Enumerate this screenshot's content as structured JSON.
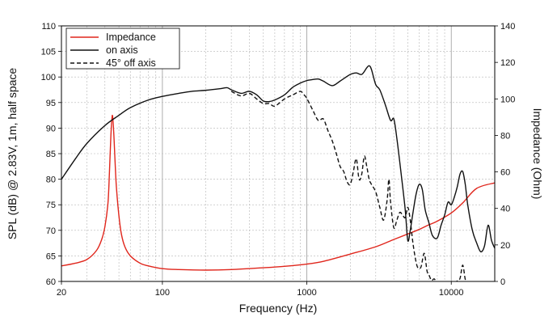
{
  "chart_data": {
    "type": "line",
    "xlabel": "Frequency (Hz)",
    "ylabel_left": "SPL (dB) @ 2.83V, 1m, half space",
    "ylabel_right": "Impedance (Ohm)",
    "x_scale": "log",
    "xlim": [
      20,
      20000
    ],
    "ylim_left": [
      60,
      110
    ],
    "ylim_right": [
      0,
      140
    ],
    "x_ticks": [
      {
        "value": 20,
        "label": "20"
      },
      {
        "value": 100,
        "label": "100"
      },
      {
        "value": 1000,
        "label": "1000"
      },
      {
        "value": 10000,
        "label": "10000"
      }
    ],
    "y_ticks_left": [
      "60",
      "65",
      "70",
      "75",
      "80",
      "85",
      "90",
      "95",
      "100",
      "105",
      "110"
    ],
    "y_ticks_right": [
      "0",
      "20",
      "40",
      "60",
      "80",
      "100",
      "120",
      "140"
    ],
    "grid": true,
    "legend_position": "top-left",
    "series": [
      {
        "name": "Impedance",
        "axis": "right",
        "color": "#e0261c",
        "style": "solid",
        "x": [
          20,
          25,
          30,
          35,
          38,
          40,
          42,
          43,
          44,
          45,
          46,
          47,
          48,
          50,
          52,
          55,
          60,
          70,
          80,
          100,
          130,
          200,
          300,
          500,
          700,
          1000,
          1300,
          2000,
          3000,
          4000,
          5000,
          6000,
          7000,
          8000,
          10000,
          12000,
          15000,
          20000
        ],
        "y": [
          8.5,
          10,
          12,
          17,
          23,
          30,
          43,
          60,
          80,
          91,
          82,
          66,
          52,
          36,
          26,
          19,
          14,
          10,
          8.5,
          7,
          6.5,
          6.2,
          6.5,
          7.5,
          8.3,
          9.5,
          11,
          15,
          19,
          23,
          26,
          28.5,
          31,
          33,
          37.5,
          43,
          51,
          54
        ]
      },
      {
        "name": "on axis",
        "axis": "left",
        "color": "#111111",
        "style": "solid",
        "x": [
          20,
          25,
          30,
          40,
          50,
          60,
          80,
          100,
          130,
          160,
          200,
          250,
          280,
          300,
          350,
          400,
          450,
          500,
          550,
          600,
          700,
          800,
          900,
          1000,
          1100,
          1200,
          1300,
          1500,
          1700,
          2000,
          2200,
          2400,
          2600,
          2700,
          2800,
          3000,
          3200,
          3500,
          3800,
          4000,
          4200,
          4500,
          4800,
          5000,
          5200,
          5400,
          5700,
          6000,
          6300,
          6600,
          7000,
          7400,
          8000,
          8500,
          9000,
          9500,
          10000,
          10500,
          11000,
          11500,
          12000,
          12500,
          13000,
          14000,
          15000,
          16000,
          17000,
          18000,
          19000,
          20000
        ],
        "y": [
          80,
          84,
          87,
          90.5,
          92.5,
          94,
          95.5,
          96.2,
          96.8,
          97.2,
          97.4,
          97.7,
          97.9,
          97.5,
          96.8,
          97.2,
          96.5,
          95.3,
          95.2,
          95.5,
          96.5,
          98,
          98.8,
          99.3,
          99.5,
          99.6,
          99.2,
          98.3,
          99.2,
          100.5,
          100.8,
          100.5,
          101.8,
          102.2,
          101.5,
          98.5,
          97.5,
          94.5,
          91.5,
          91.8,
          88,
          81,
          74,
          68,
          70,
          73,
          77,
          79,
          78,
          74,
          71.5,
          69,
          68.5,
          71,
          73,
          75.5,
          75,
          76.5,
          78.5,
          81,
          81.5,
          79,
          75,
          70,
          67.5,
          65.8,
          67,
          71,
          68,
          66.5
        ]
      },
      {
        "name": "45° off axis",
        "axis": "left",
        "color": "#111111",
        "style": "dashed",
        "x": [
          300,
          350,
          400,
          450,
          500,
          550,
          600,
          700,
          800,
          900,
          950,
          1000,
          1100,
          1200,
          1300,
          1400,
          1500,
          1600,
          1700,
          1800,
          1900,
          2000,
          2100,
          2200,
          2300,
          2400,
          2500,
          2600,
          2700,
          2800,
          3000,
          3200,
          3400,
          3600,
          3700,
          3800,
          4000,
          4200,
          4400,
          4600,
          4800,
          5000,
          5200,
          5400,
          5600,
          5800,
          6000,
          6200,
          6500,
          6800,
          7000,
          7300,
          7600,
          8000,
          8500,
          9000,
          9500,
          10000,
          10500,
          11000,
          11500,
          12000,
          12500,
          13000
        ],
        "y": [
          97.2,
          96.3,
          96.8,
          95.7,
          94.8,
          94.8,
          94.3,
          95.7,
          96.5,
          97.2,
          96.6,
          95.8,
          93.5,
          91.5,
          91.8,
          89.5,
          87.5,
          85,
          82.5,
          81.5,
          79.5,
          79,
          81.5,
          84,
          80,
          81,
          84.5,
          82.5,
          80,
          79,
          77.5,
          74.5,
          72,
          76,
          80,
          75.5,
          70.5,
          72,
          73.5,
          73,
          72.5,
          74.5,
          72,
          68,
          65,
          63,
          62.5,
          63,
          65.5,
          62,
          61.3,
          60.2,
          60.5,
          59.8,
          59.5,
          59.2,
          59,
          59.4,
          59.7,
          60.1,
          60.6,
          63.2,
          60.4,
          59.5
        ]
      }
    ]
  }
}
